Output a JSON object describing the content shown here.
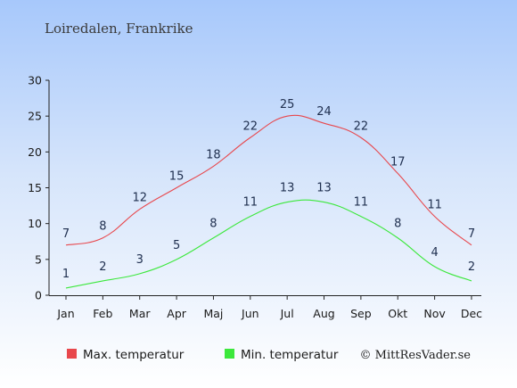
{
  "chart_data": {
    "type": "line",
    "title": "Loiredalen, Frankrike",
    "categories": [
      "Jan",
      "Feb",
      "Mar",
      "Apr",
      "Maj",
      "Jun",
      "Jul",
      "Aug",
      "Sep",
      "Okt",
      "Nov",
      "Dec"
    ],
    "series": [
      {
        "name": "Max. temperatur",
        "color": "#e8474c",
        "values": [
          7,
          8,
          12,
          15,
          18,
          22,
          25,
          24,
          22,
          17,
          11,
          7
        ]
      },
      {
        "name": "Min. temperatur",
        "color": "#3ce83c",
        "values": [
          1,
          2,
          3,
          5,
          8,
          11,
          13,
          13,
          11,
          8,
          4,
          2
        ]
      }
    ],
    "ylim": [
      0,
      30
    ],
    "yticks": [
      0,
      5,
      10,
      15,
      20,
      25,
      30
    ],
    "grid": false,
    "legend_position": "bottom-left"
  },
  "credit": "© MittResVader.se"
}
